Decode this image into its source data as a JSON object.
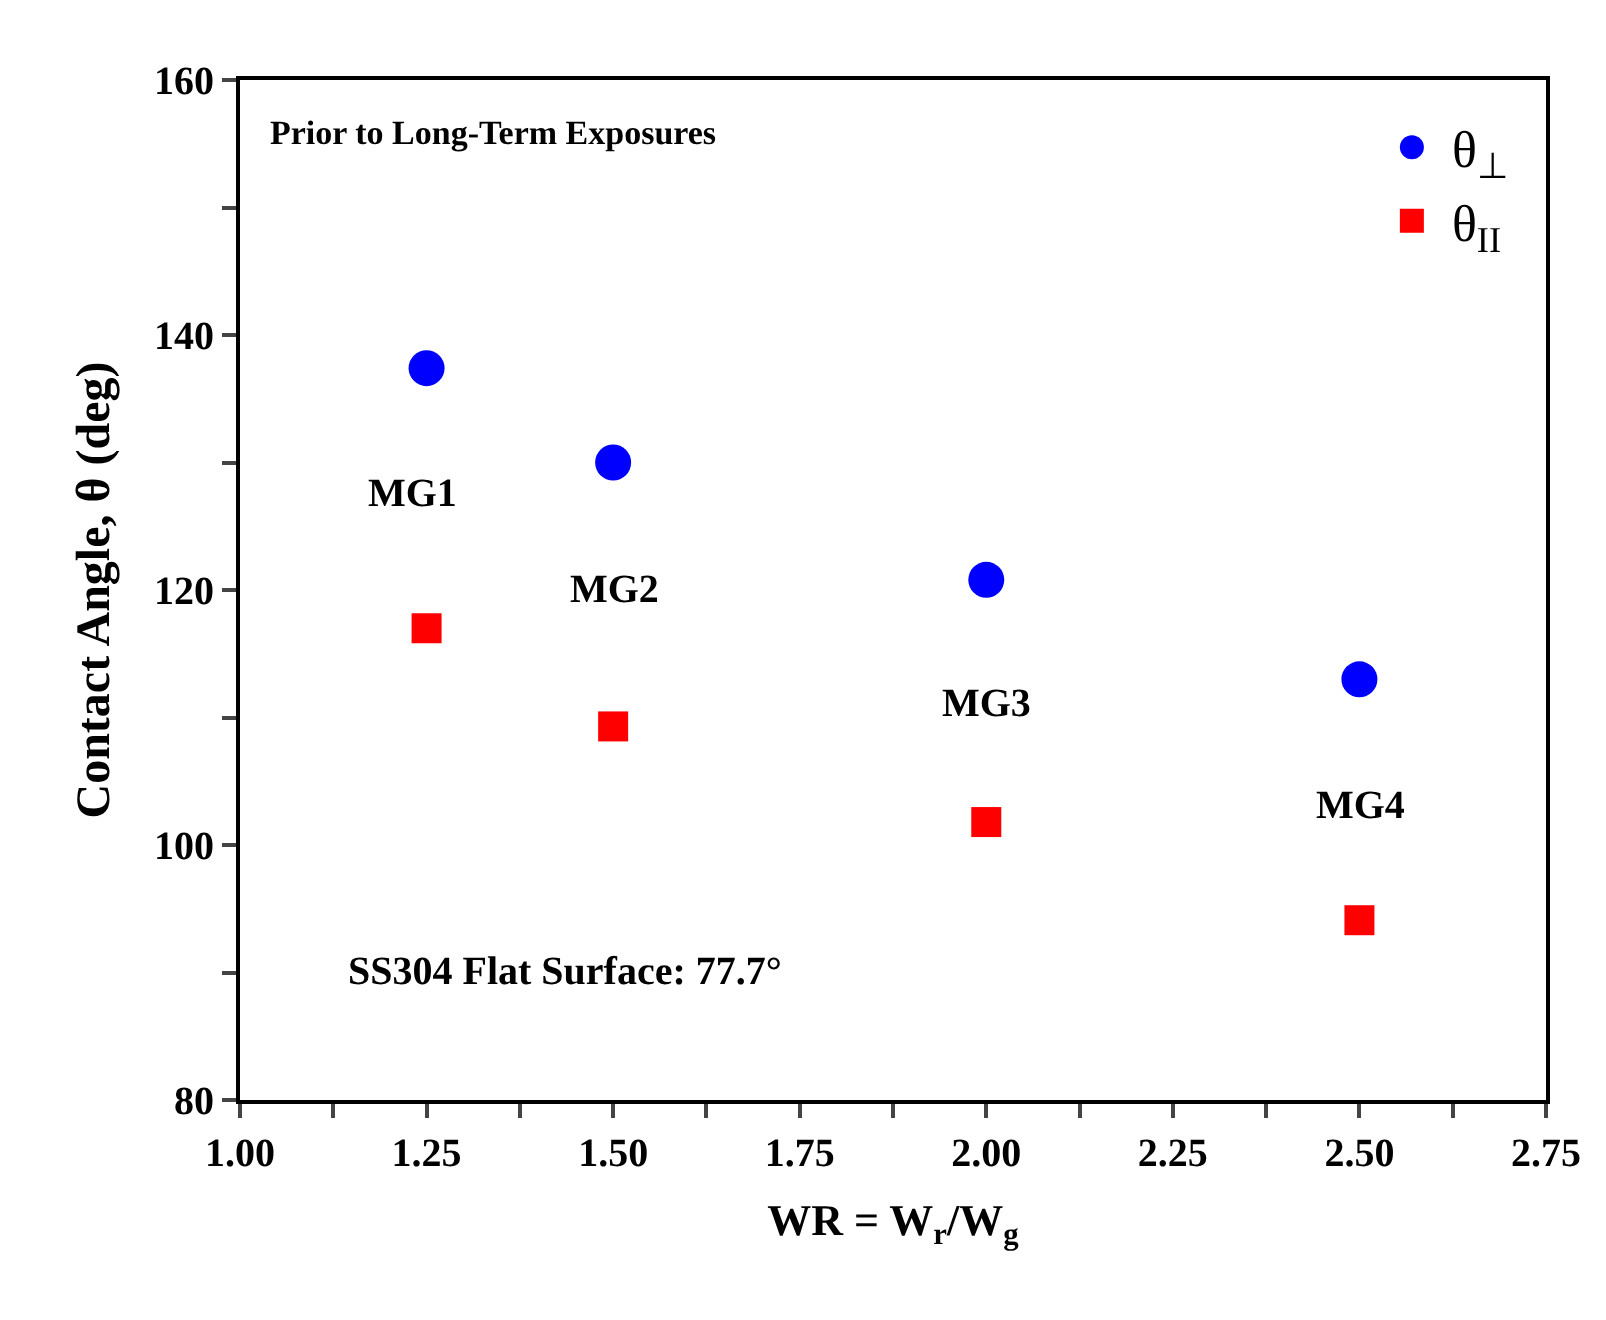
{
  "chart_data": {
    "type": "scatter",
    "xlabel": "WR = W$_{r}$/W$_{g}$",
    "ylabel": "Contact Angle, θ (deg)",
    "x": [
      1.25,
      1.5,
      2.0,
      2.5
    ],
    "series": [
      {
        "name": "θ$_{⊥}$",
        "color": "#0000ff",
        "marker": "circle",
        "values": [
          137.4,
          130,
          120.8,
          113
        ]
      },
      {
        "name": "θ$_{II}$",
        "color": "#ff0000",
        "marker": "square",
        "values": [
          117,
          109.3,
          101.8,
          94.1
        ]
      }
    ],
    "xlim": [
      1.0,
      2.75
    ],
    "xticks": [
      {
        "value": 1.0,
        "label": "1.00"
      },
      {
        "value": 1.125,
        "label": null
      },
      {
        "value": 1.25,
        "label": "1.25"
      },
      {
        "value": 1.375,
        "label": null
      },
      {
        "value": 1.5,
        "label": "1.50"
      },
      {
        "value": 1.625,
        "label": null
      },
      {
        "value": 1.75,
        "label": "1.75"
      },
      {
        "value": 1.875,
        "label": null
      },
      {
        "value": 2.0,
        "label": "2.00"
      },
      {
        "value": 2.125,
        "label": null
      },
      {
        "value": 2.25,
        "label": "2.25"
      },
      {
        "value": 2.375,
        "label": null
      },
      {
        "value": 2.5,
        "label": "2.50"
      },
      {
        "value": 2.625,
        "label": null
      },
      {
        "value": 2.75,
        "label": "2.75"
      }
    ],
    "ylim": [
      80,
      160
    ],
    "yticks": [
      80,
      {
        "value": 90,
        "label": null
      },
      100,
      {
        "value": 110,
        "label": null
      },
      120,
      {
        "value": 130,
        "label": null
      },
      140,
      {
        "value": 150,
        "label": null
      },
      160
    ],
    "annotations": [
      "Prior to Long-Term Exposures",
      "SS304 Flat Surface: 77.7°",
      "MG1",
      "MG2",
      "MG3",
      "MG4"
    ],
    "legend": "top right"
  }
}
